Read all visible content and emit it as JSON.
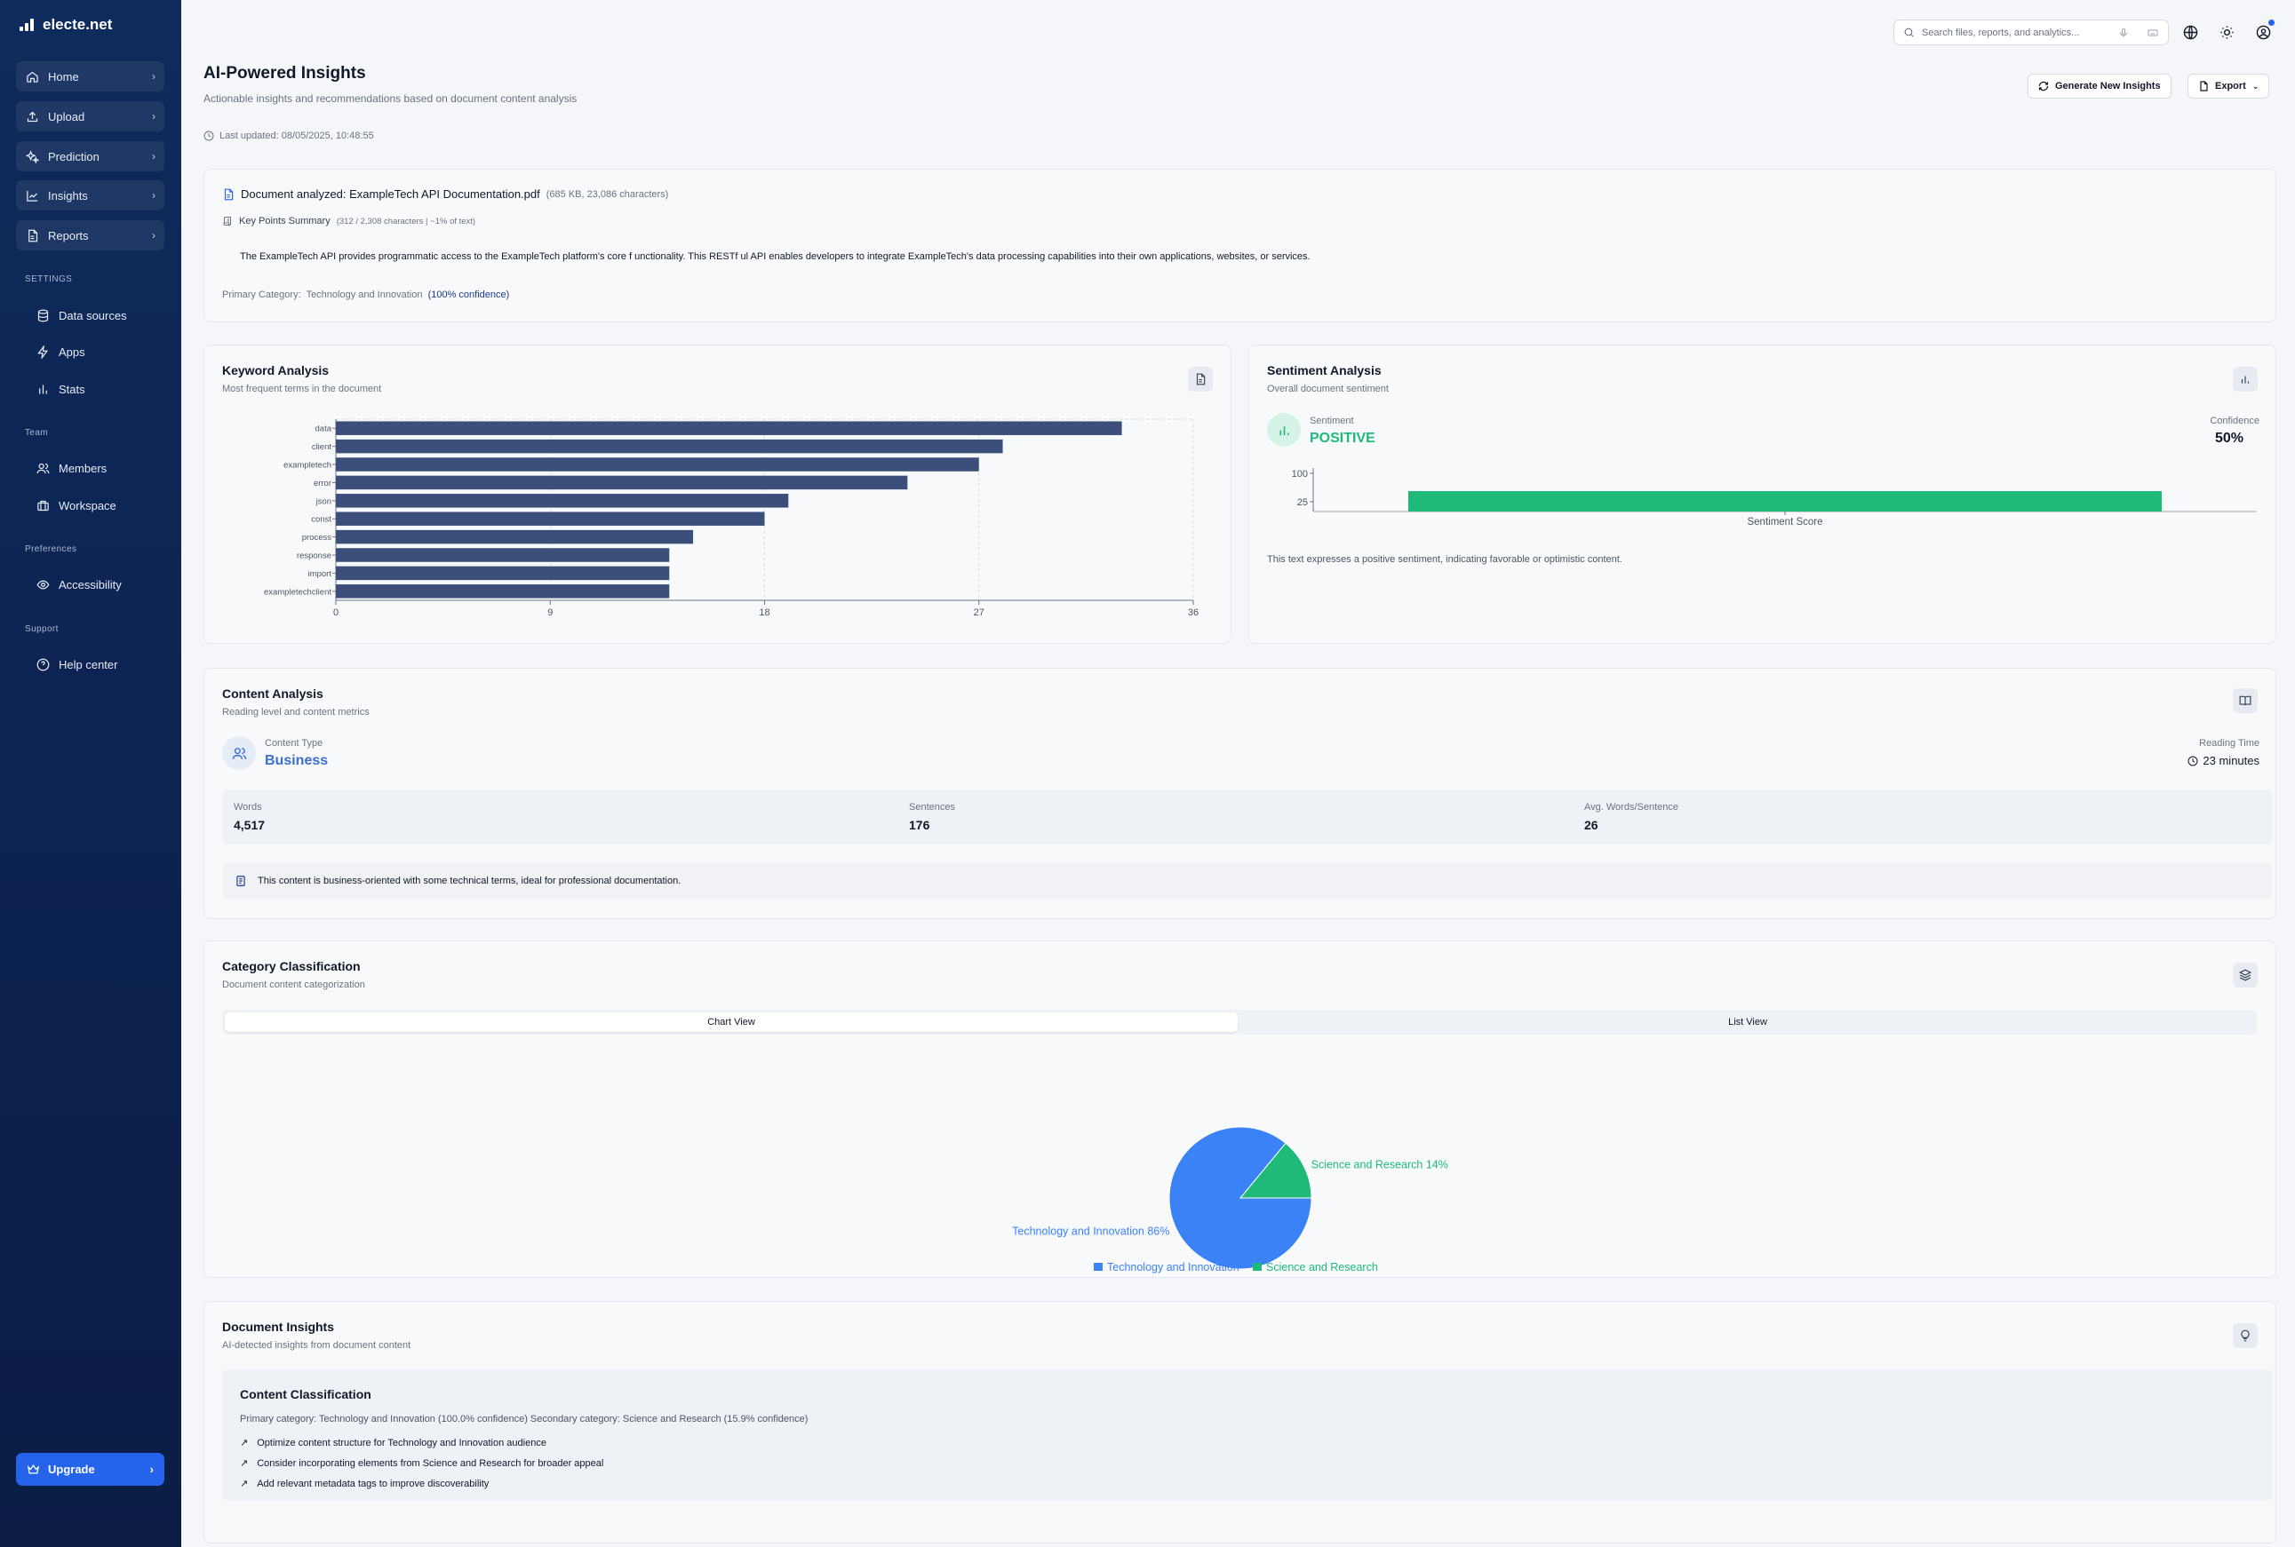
{
  "brand": {
    "name": "electe.net"
  },
  "sidebar": {
    "main": [
      {
        "label": "Home",
        "icon": "home-icon"
      },
      {
        "label": "Upload",
        "icon": "upload-icon"
      },
      {
        "label": "Prediction",
        "icon": "sparkles-icon"
      },
      {
        "label": "Insights",
        "icon": "line-chart-icon"
      },
      {
        "label": "Reports",
        "icon": "document-icon"
      }
    ],
    "settings_label": "SETTINGS",
    "settings": [
      {
        "label": "Data sources",
        "icon": "database-icon"
      },
      {
        "label": "Apps",
        "icon": "bolt-icon"
      },
      {
        "label": "Stats",
        "icon": "bar-chart-icon"
      }
    ],
    "team_label": "Team",
    "team": [
      {
        "label": "Members",
        "icon": "users-icon"
      },
      {
        "label": "Workspace",
        "icon": "briefcase-icon"
      }
    ],
    "preferences_label": "Preferences",
    "preferences": [
      {
        "label": "Accessibility",
        "icon": "eye-icon"
      }
    ],
    "support_label": "Support",
    "support": [
      {
        "label": "Help center",
        "icon": "help-circle-icon"
      }
    ],
    "upgrade_label": "Upgrade"
  },
  "topbar": {
    "search_placeholder": "Search files, reports, and analytics..."
  },
  "page": {
    "title": "AI-Powered Insights",
    "subtitle": "Actionable insights and recommendations based on document content analysis",
    "last_updated": "Last updated: 08/05/2025, 10:48:55",
    "generate_button": "Generate New Insights",
    "export_button": "Export"
  },
  "document": {
    "analyzed": "Document analyzed: ExampleTech API Documentation.pdf",
    "size_info": "(685 KB, 23,086 characters)",
    "key_points_label": "Key Points Summary",
    "key_points_info": "(312 / 2,308 characters | ~1% of text)",
    "summary": "The ExampleTech API provides programmatic access to the ExampleTech platform's core f unctionality. This RESTf ul API enables developers to integrate ExampleTech's data processing capabilities into their own applications, websites, or services.",
    "primary_category_label": "Primary Category:",
    "primary_category": "Technology and Innovation",
    "primary_confidence": "(100% confidence)"
  },
  "keyword": {
    "title": "Keyword Analysis",
    "subtitle": "Most frequent terms in the document"
  },
  "sentiment": {
    "title": "Sentiment Analysis",
    "subtitle": "Overall document sentiment",
    "label": "Sentiment",
    "value": "POSITIVE",
    "confidence_label": "Confidence",
    "confidence_value": "50%",
    "description": "This text expresses a positive sentiment, indicating favorable or optimistic content.",
    "color": "#1fb97a"
  },
  "content": {
    "title": "Content Analysis",
    "subtitle": "Reading level and content metrics",
    "type_label": "Content Type",
    "type_value": "Business",
    "reading_label": "Reading Time",
    "reading_value": "23 minutes",
    "words_label": "Words",
    "words_value": "4,517",
    "sentences_label": "Sentences",
    "sentences_value": "176",
    "avg_label": "Avg. Words/Sentence",
    "avg_value": "26",
    "note": "This content is business-oriented with some technical terms, ideal for professional documentation."
  },
  "category": {
    "title": "Category Classification",
    "subtitle": "Document content categorization",
    "tab_chart": "Chart View",
    "tab_list": "List View"
  },
  "insights": {
    "title": "Document Insights",
    "subtitle": "AI-detected insights from document content",
    "box_title": "Content Classification",
    "box_sub": "Primary category: Technology and Innovation (100.0% confidence) Secondary category: Science and Research (15.9% confidence)",
    "bullets": [
      "Optimize content structure for Technology and Innovation audience",
      "Consider incorporating elements from Science and Research for broader appeal",
      "Add relevant metadata tags to improve discoverability"
    ]
  },
  "chart_data": [
    {
      "type": "bar",
      "orientation": "horizontal",
      "categories": [
        "data",
        "client",
        "exampletech",
        "error",
        "json",
        "const",
        "process",
        "response",
        "import",
        "exampletechclient"
      ],
      "values": [
        33,
        28,
        27,
        24,
        19,
        18,
        15,
        14,
        14,
        14
      ],
      "xlim": [
        0,
        36
      ],
      "xticks": [
        0,
        9,
        18,
        27,
        36
      ],
      "grid": true,
      "color": "#3b4f7a"
    },
    {
      "type": "bar",
      "categories": [
        "Sentiment Score"
      ],
      "yticks": [
        100,
        25
      ],
      "xlabel": "Sentiment Score",
      "color": "#1fb97a"
    },
    {
      "type": "pie",
      "labels": [
        "Technology and Innovation",
        "Science and Research"
      ],
      "values": [
        86,
        14
      ],
      "slice_labels": [
        "Technology and Innovation 86%",
        "Science and Research 14%"
      ],
      "colors": [
        "#3b82f6",
        "#1fb97a"
      ],
      "legend": "bottom"
    }
  ]
}
